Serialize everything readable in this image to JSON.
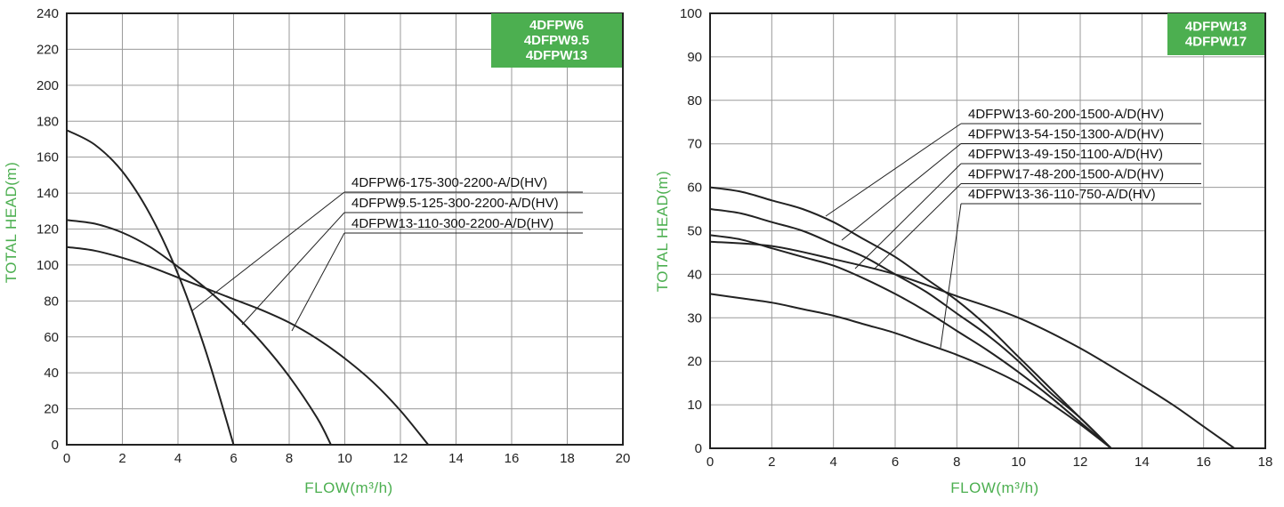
{
  "colors": {
    "accent": "#4caf50",
    "curve": "#222222",
    "grid": "#9a9a9a"
  },
  "chart_data": [
    {
      "type": "line",
      "xlabel": "FLOW(m³/h)",
      "ylabel": "TOTAL HEAD(m)",
      "xlim": [
        0,
        20
      ],
      "ylim": [
        0,
        240
      ],
      "xticks": [
        0,
        2,
        4,
        6,
        8,
        10,
        12,
        14,
        16,
        18,
        20
      ],
      "yticks": [
        0,
        20,
        40,
        60,
        80,
        100,
        120,
        140,
        160,
        180,
        200,
        220,
        240
      ],
      "grid": true,
      "badge": [
        "4DFPW6",
        "4DFPW9.5",
        "4DFPW13"
      ],
      "series": [
        {
          "name": "4DFPW6-175-300-2200-A/D(HV)",
          "x": [
            0,
            1,
            2,
            3,
            4,
            5,
            6
          ],
          "y": [
            175,
            167,
            152,
            128,
            95,
            52,
            0
          ]
        },
        {
          "name": "4DFPW9.5-125-300-2200-A/D(HV)",
          "x": [
            0,
            1,
            2,
            3,
            4,
            5,
            6,
            7,
            8,
            9,
            9.5
          ],
          "y": [
            125,
            123,
            118,
            110,
            99,
            87,
            73,
            57,
            38,
            15,
            0
          ]
        },
        {
          "name": "4DFPW13-110-300-2200-A/D(HV)",
          "x": [
            0,
            1,
            2,
            3,
            4,
            5,
            6,
            7,
            8,
            9,
            10,
            11,
            12,
            13
          ],
          "y": [
            110,
            108,
            104,
            99,
            93,
            87,
            81,
            75,
            68,
            59,
            48,
            35,
            19,
            0
          ]
        }
      ]
    },
    {
      "type": "line",
      "xlabel": "FLOW(m³/h)",
      "ylabel": "TOTAL HEAD(m)",
      "xlim": [
        0,
        18
      ],
      "ylim": [
        0,
        100
      ],
      "xticks": [
        0,
        2,
        4,
        6,
        8,
        10,
        12,
        14,
        16,
        18
      ],
      "yticks": [
        0,
        10,
        20,
        30,
        40,
        50,
        60,
        70,
        80,
        90,
        100
      ],
      "grid": true,
      "badge": [
        "4DFPW13",
        "4DFPW17"
      ],
      "series": [
        {
          "name": "4DFPW13-60-200-1500-A/D(HV)",
          "x": [
            0,
            1,
            2,
            3,
            4,
            5,
            6,
            7,
            8,
            9,
            10,
            11,
            12,
            13
          ],
          "y": [
            60,
            59,
            57,
            55,
            52,
            48,
            44,
            39,
            34,
            28,
            21,
            14,
            7,
            0
          ]
        },
        {
          "name": "4DFPW13-54-150-1300-A/D(HV)",
          "x": [
            0,
            1,
            2,
            3,
            4,
            5,
            6,
            7,
            8,
            9,
            10,
            11,
            12,
            13
          ],
          "y": [
            55,
            54,
            52,
            50,
            47,
            44,
            40,
            36,
            31,
            26,
            20,
            13,
            7,
            0
          ]
        },
        {
          "name": "4DFPW13-49-150-1100-A/D(HV)",
          "x": [
            0,
            1,
            2,
            3,
            4,
            5,
            6,
            7,
            8,
            9,
            10,
            11,
            12,
            13
          ],
          "y": [
            49,
            48,
            46,
            44,
            42,
            39,
            35.5,
            31.5,
            27,
            22.5,
            17.5,
            12,
            6,
            0
          ]
        },
        {
          "name": "4DFPW17-48-200-1500-A/D(HV)",
          "x": [
            0,
            2,
            4,
            6,
            8,
            10,
            12,
            14,
            15,
            16,
            17
          ],
          "y": [
            47.5,
            46.5,
            43.5,
            40,
            35,
            30,
            23,
            14.5,
            10,
            5,
            0
          ]
        },
        {
          "name": "4DFPW13-36-110-750-A/D(HV)",
          "x": [
            0,
            1,
            2,
            3,
            4,
            5,
            6,
            7,
            8,
            9,
            10,
            11,
            12,
            13
          ],
          "y": [
            35.5,
            34.5,
            33.5,
            32,
            30.5,
            28.5,
            26.5,
            24,
            21.5,
            18.5,
            15,
            10.5,
            5.5,
            0
          ]
        }
      ]
    }
  ]
}
